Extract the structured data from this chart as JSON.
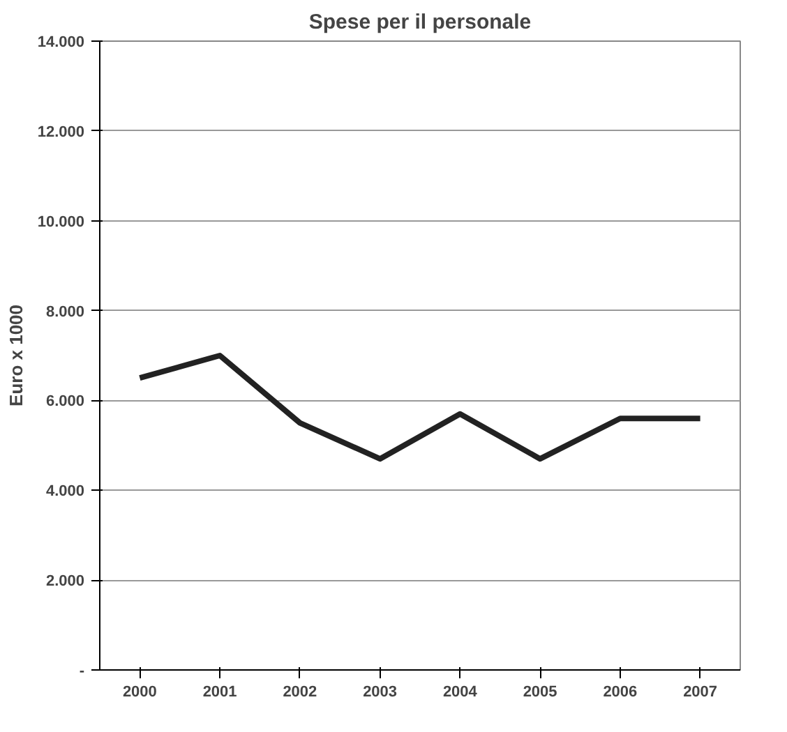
{
  "chart_data": {
    "type": "line",
    "title": "Spese per il personale",
    "ylabel": "Euro x 1000",
    "categories": [
      "2000",
      "2001",
      "2002",
      "2003",
      "2004",
      "2005",
      "2006",
      "2007"
    ],
    "series": [
      {
        "color": "#222222",
        "values": [
          6500,
          7000,
          5500,
          4700,
          5700,
          4700,
          5600,
          5600
        ]
      }
    ],
    "ylim": [
      0,
      14000
    ],
    "yticks": [
      {
        "value": 0,
        "label": "-"
      },
      {
        "value": 2000,
        "label": "2.000"
      },
      {
        "value": 4000,
        "label": "4.000"
      },
      {
        "value": 6000,
        "label": "6.000"
      },
      {
        "value": 8000,
        "label": "8.000"
      },
      {
        "value": 10000,
        "label": "10.000"
      },
      {
        "value": 12000,
        "label": "12.000"
      },
      {
        "value": 14000,
        "label": "14.000"
      }
    ],
    "grid": "y",
    "marker": "none",
    "line_style": "solid"
  }
}
